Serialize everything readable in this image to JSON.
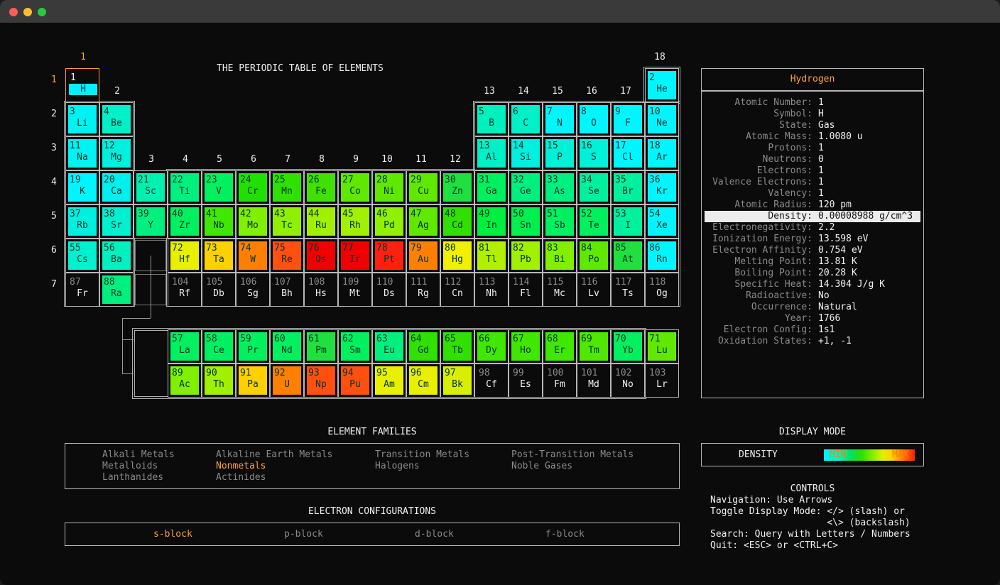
{
  "title": "THE PERIODIC TABLE OF ELEMENTS",
  "group_labels": [
    "1",
    "2",
    "3",
    "4",
    "5",
    "6",
    "7",
    "8",
    "9",
    "10",
    "11",
    "12",
    "13",
    "14",
    "15",
    "16",
    "17",
    "18"
  ],
  "period_labels": [
    "1",
    "2",
    "3",
    "4",
    "5",
    "6",
    "7"
  ],
  "colors": {
    "accent": "#ffa030",
    "selected_border": "#ff9a20",
    "scale": [
      "#00f5ff",
      "#00e060",
      "#90f000",
      "#ffd000",
      "#ff8000",
      "#ff2000"
    ]
  },
  "elements": [
    {
      "n": "1",
      "s": "H",
      "g": 1,
      "p": 1,
      "c": "#00f0ff",
      "selected": true
    },
    {
      "n": "2",
      "s": "He",
      "g": 18,
      "p": 1,
      "c": "#00f5ff"
    },
    {
      "n": "3",
      "s": "Li",
      "g": 1,
      "p": 2,
      "c": "#00f2f2"
    },
    {
      "n": "4",
      "s": "Be",
      "g": 2,
      "p": 2,
      "c": "#00f0c8"
    },
    {
      "n": "5",
      "s": "B",
      "g": 13,
      "p": 2,
      "c": "#00f0c0"
    },
    {
      "n": "6",
      "s": "C",
      "g": 14,
      "p": 2,
      "c": "#00f0c8"
    },
    {
      "n": "7",
      "s": "N",
      "g": 15,
      "p": 2,
      "c": "#00f5ff"
    },
    {
      "n": "8",
      "s": "O",
      "g": 16,
      "p": 2,
      "c": "#00f5ff"
    },
    {
      "n": "9",
      "s": "F",
      "g": 17,
      "p": 2,
      "c": "#00f5ff"
    },
    {
      "n": "10",
      "s": "Ne",
      "g": 18,
      "p": 2,
      "c": "#00f5ff"
    },
    {
      "n": "11",
      "s": "Na",
      "g": 1,
      "p": 3,
      "c": "#00f2f2"
    },
    {
      "n": "12",
      "s": "Mg",
      "g": 2,
      "p": 3,
      "c": "#00f0e0"
    },
    {
      "n": "13",
      "s": "Al",
      "g": 13,
      "p": 3,
      "c": "#00f0c8"
    },
    {
      "n": "14",
      "s": "Si",
      "g": 14,
      "p": 3,
      "c": "#00f0e0"
    },
    {
      "n": "15",
      "s": "P",
      "g": 15,
      "p": 3,
      "c": "#00f0d8"
    },
    {
      "n": "16",
      "s": "S",
      "g": 16,
      "p": 3,
      "c": "#00f0d8"
    },
    {
      "n": "17",
      "s": "Cl",
      "g": 17,
      "p": 3,
      "c": "#00f5ff"
    },
    {
      "n": "18",
      "s": "Ar",
      "g": 18,
      "p": 3,
      "c": "#00f5ff"
    },
    {
      "n": "19",
      "s": "K",
      "g": 1,
      "p": 4,
      "c": "#00f5ff"
    },
    {
      "n": "20",
      "s": "Ca",
      "g": 2,
      "p": 4,
      "c": "#00f0f0"
    },
    {
      "n": "21",
      "s": "Sc",
      "g": 3,
      "p": 4,
      "c": "#00f0b0"
    },
    {
      "n": "22",
      "s": "Ti",
      "g": 4,
      "p": 4,
      "c": "#00f080"
    },
    {
      "n": "23",
      "s": "V",
      "g": 5,
      "p": 4,
      "c": "#00f060"
    },
    {
      "n": "24",
      "s": "Cr",
      "g": 6,
      "p": 4,
      "c": "#20e000"
    },
    {
      "n": "25",
      "s": "Mn",
      "g": 7,
      "p": 4,
      "c": "#30e000"
    },
    {
      "n": "26",
      "s": "Fe",
      "g": 8,
      "p": 4,
      "c": "#40e000"
    },
    {
      "n": "27",
      "s": "Co",
      "g": 9,
      "p": 4,
      "c": "#60e800"
    },
    {
      "n": "28",
      "s": "Ni",
      "g": 10,
      "p": 4,
      "c": "#60e800"
    },
    {
      "n": "29",
      "s": "Cu",
      "g": 11,
      "p": 4,
      "c": "#60e800"
    },
    {
      "n": "30",
      "s": "Zn",
      "g": 12,
      "p": 4,
      "c": "#20e040"
    },
    {
      "n": "31",
      "s": "Ga",
      "g": 13,
      "p": 4,
      "c": "#00f060"
    },
    {
      "n": "32",
      "s": "Ge",
      "g": 14,
      "p": 4,
      "c": "#00f080"
    },
    {
      "n": "33",
      "s": "As",
      "g": 15,
      "p": 4,
      "c": "#00f080"
    },
    {
      "n": "34",
      "s": "Se",
      "g": 16,
      "p": 4,
      "c": "#00f0a0"
    },
    {
      "n": "35",
      "s": "Br",
      "g": 17,
      "p": 4,
      "c": "#00f0a0"
    },
    {
      "n": "36",
      "s": "Kr",
      "g": 18,
      "p": 4,
      "c": "#00f5ff"
    },
    {
      "n": "37",
      "s": "Rb",
      "g": 1,
      "p": 5,
      "c": "#00f0e0"
    },
    {
      "n": "38",
      "s": "Sr",
      "g": 2,
      "p": 5,
      "c": "#00f0d0"
    },
    {
      "n": "39",
      "s": "Y",
      "g": 3,
      "p": 5,
      "c": "#00f080"
    },
    {
      "n": "40",
      "s": "Zr",
      "g": 4,
      "p": 5,
      "c": "#00f060"
    },
    {
      "n": "41",
      "s": "Nb",
      "g": 5,
      "p": 5,
      "c": "#40e800"
    },
    {
      "n": "42",
      "s": "Mo",
      "g": 6,
      "p": 5,
      "c": "#80f000"
    },
    {
      "n": "43",
      "s": "Tc",
      "g": 7,
      "p": 5,
      "c": "#90f000"
    },
    {
      "n": "44",
      "s": "Ru",
      "g": 8,
      "p": 5,
      "c": "#a0f000"
    },
    {
      "n": "45",
      "s": "Rh",
      "g": 9,
      "p": 5,
      "c": "#a0f000"
    },
    {
      "n": "46",
      "s": "Pd",
      "g": 10,
      "p": 5,
      "c": "#90f000"
    },
    {
      "n": "47",
      "s": "Ag",
      "g": 11,
      "p": 5,
      "c": "#60e800"
    },
    {
      "n": "48",
      "s": "Cd",
      "g": 12,
      "p": 5,
      "c": "#30e000"
    },
    {
      "n": "49",
      "s": "In",
      "g": 13,
      "p": 5,
      "c": "#00f040"
    },
    {
      "n": "50",
      "s": "Sn",
      "g": 14,
      "p": 5,
      "c": "#00f050"
    },
    {
      "n": "51",
      "s": "Sb",
      "g": 15,
      "p": 5,
      "c": "#00f060"
    },
    {
      "n": "52",
      "s": "Te",
      "g": 16,
      "p": 5,
      "c": "#00f060"
    },
    {
      "n": "53",
      "s": "I",
      "g": 17,
      "p": 5,
      "c": "#00f0a0"
    },
    {
      "n": "54",
      "s": "Xe",
      "g": 18,
      "p": 5,
      "c": "#00f5ff"
    },
    {
      "n": "55",
      "s": "Cs",
      "g": 1,
      "p": 6,
      "c": "#00f0d0"
    },
    {
      "n": "56",
      "s": "Ba",
      "g": 2,
      "p": 6,
      "c": "#00f0c0"
    },
    {
      "n": "72",
      "s": "Hf",
      "g": 4,
      "p": 6,
      "c": "#e8f000"
    },
    {
      "n": "73",
      "s": "Ta",
      "g": 5,
      "p": 6,
      "c": "#ffd000"
    },
    {
      "n": "74",
      "s": "W",
      "g": 6,
      "p": 6,
      "c": "#ff8000"
    },
    {
      "n": "75",
      "s": "Re",
      "g": 7,
      "p": 6,
      "c": "#ff5010"
    },
    {
      "n": "76",
      "s": "Os",
      "g": 8,
      "p": 6,
      "c": "#f00000"
    },
    {
      "n": "77",
      "s": "Ir",
      "g": 9,
      "p": 6,
      "c": "#f00000"
    },
    {
      "n": "78",
      "s": "Pt",
      "g": 10,
      "p": 6,
      "c": "#ff2010"
    },
    {
      "n": "79",
      "s": "Au",
      "g": 11,
      "p": 6,
      "c": "#ff8000"
    },
    {
      "n": "80",
      "s": "Hg",
      "g": 12,
      "p": 6,
      "c": "#f0f000"
    },
    {
      "n": "81",
      "s": "Tl",
      "g": 13,
      "p": 6,
      "c": "#b0f000"
    },
    {
      "n": "82",
      "s": "Pb",
      "g": 14,
      "p": 6,
      "c": "#a0f000"
    },
    {
      "n": "83",
      "s": "Bi",
      "g": 15,
      "p": 6,
      "c": "#80f000"
    },
    {
      "n": "84",
      "s": "Po",
      "g": 16,
      "p": 6,
      "c": "#60e800"
    },
    {
      "n": "85",
      "s": "At",
      "g": 17,
      "p": 6,
      "c": "#20e040"
    },
    {
      "n": "86",
      "s": "Rn",
      "g": 18,
      "p": 6,
      "c": "#00f5ff"
    },
    {
      "n": "87",
      "s": "Fr",
      "g": 1,
      "p": 7,
      "c": null
    },
    {
      "n": "88",
      "s": "Ra",
      "g": 2,
      "p": 7,
      "c": "#00f080"
    },
    {
      "n": "104",
      "s": "Rf",
      "g": 4,
      "p": 7,
      "c": null
    },
    {
      "n": "105",
      "s": "Db",
      "g": 5,
      "p": 7,
      "c": null
    },
    {
      "n": "106",
      "s": "Sg",
      "g": 6,
      "p": 7,
      "c": null
    },
    {
      "n": "107",
      "s": "Bh",
      "g": 7,
      "p": 7,
      "c": null
    },
    {
      "n": "108",
      "s": "Hs",
      "g": 8,
      "p": 7,
      "c": null
    },
    {
      "n": "109",
      "s": "Mt",
      "g": 9,
      "p": 7,
      "c": null
    },
    {
      "n": "110",
      "s": "Ds",
      "g": 10,
      "p": 7,
      "c": null
    },
    {
      "n": "111",
      "s": "Rg",
      "g": 11,
      "p": 7,
      "c": null
    },
    {
      "n": "112",
      "s": "Cn",
      "g": 12,
      "p": 7,
      "c": null
    },
    {
      "n": "113",
      "s": "Nh",
      "g": 13,
      "p": 7,
      "c": null
    },
    {
      "n": "114",
      "s": "Fl",
      "g": 14,
      "p": 7,
      "c": null
    },
    {
      "n": "115",
      "s": "Mc",
      "g": 15,
      "p": 7,
      "c": null
    },
    {
      "n": "116",
      "s": "Lv",
      "g": 16,
      "p": 7,
      "c": null
    },
    {
      "n": "117",
      "s": "Ts",
      "g": 17,
      "p": 7,
      "c": null
    },
    {
      "n": "118",
      "s": "Og",
      "g": 18,
      "p": 7,
      "c": null
    },
    {
      "n": "57",
      "s": "La",
      "g": 4,
      "p": 9,
      "c": "#00f060"
    },
    {
      "n": "58",
      "s": "Ce",
      "g": 5,
      "p": 9,
      "c": "#00f060"
    },
    {
      "n": "59",
      "s": "Pr",
      "g": 6,
      "p": 9,
      "c": "#00f060"
    },
    {
      "n": "60",
      "s": "Nd",
      "g": 7,
      "p": 9,
      "c": "#00f060"
    },
    {
      "n": "61",
      "s": "Pm",
      "g": 8,
      "p": 9,
      "c": "#20e040"
    },
    {
      "n": "62",
      "s": "Sm",
      "g": 9,
      "p": 9,
      "c": "#00f060"
    },
    {
      "n": "63",
      "s": "Eu",
      "g": 10,
      "p": 9,
      "c": "#00f080"
    },
    {
      "n": "64",
      "s": "Gd",
      "g": 11,
      "p": 9,
      "c": "#30e000"
    },
    {
      "n": "65",
      "s": "Tb",
      "g": 12,
      "p": 9,
      "c": "#30e000"
    },
    {
      "n": "66",
      "s": "Dy",
      "g": 13,
      "p": 9,
      "c": "#40e800"
    },
    {
      "n": "67",
      "s": "Ho",
      "g": 14,
      "p": 9,
      "c": "#40e800"
    },
    {
      "n": "68",
      "s": "Er",
      "g": 15,
      "p": 9,
      "c": "#40e800"
    },
    {
      "n": "69",
      "s": "Tm",
      "g": 16,
      "p": 9,
      "c": "#50e800"
    },
    {
      "n": "70",
      "s": "Yb",
      "g": 17,
      "p": 9,
      "c": "#00f060"
    },
    {
      "n": "71",
      "s": "Lu",
      "g": 18,
      "p": 9,
      "c": "#60e800"
    },
    {
      "n": "89",
      "s": "Ac",
      "g": 4,
      "p": 10,
      "c": "#80f000"
    },
    {
      "n": "90",
      "s": "Th",
      "g": 5,
      "p": 10,
      "c": "#a0f000"
    },
    {
      "n": "91",
      "s": "Pa",
      "g": 6,
      "p": 10,
      "c": "#ffd000"
    },
    {
      "n": "92",
      "s": "U",
      "g": 7,
      "p": 10,
      "c": "#ff8000"
    },
    {
      "n": "93",
      "s": "Np",
      "g": 8,
      "p": 10,
      "c": "#ff5010"
    },
    {
      "n": "94",
      "s": "Pu",
      "g": 9,
      "p": 10,
      "c": "#ff5010"
    },
    {
      "n": "95",
      "s": "Am",
      "g": 10,
      "p": 10,
      "c": "#e8f000"
    },
    {
      "n": "96",
      "s": "Cm",
      "g": 11,
      "p": 10,
      "c": "#e8f000"
    },
    {
      "n": "97",
      "s": "Bk",
      "g": 12,
      "p": 10,
      "c": "#d8f000"
    },
    {
      "n": "98",
      "s": "Cf",
      "g": 13,
      "p": 10,
      "c": null
    },
    {
      "n": "99",
      "s": "Es",
      "g": 14,
      "p": 10,
      "c": null
    },
    {
      "n": "100",
      "s": "Fm",
      "g": 15,
      "p": 10,
      "c": null
    },
    {
      "n": "101",
      "s": "Md",
      "g": 16,
      "p": 10,
      "c": null
    },
    {
      "n": "102",
      "s": "No",
      "g": 17,
      "p": 10,
      "c": null
    },
    {
      "n": "103",
      "s": "Lr",
      "g": 18,
      "p": 10,
      "c": null
    }
  ],
  "details": {
    "name": "Hydrogen",
    "rows": [
      {
        "k": "Atomic Number:",
        "v": "1"
      },
      {
        "k": "Symbol:",
        "v": "H"
      },
      {
        "k": "State:",
        "v": "Gas"
      },
      {
        "k": "Atomic Mass:",
        "v": "1.0080 u"
      },
      {
        "k": "Protons:",
        "v": "1"
      },
      {
        "k": "Neutrons:",
        "v": "0"
      },
      {
        "k": "Electrons:",
        "v": "1"
      },
      {
        "k": "Valence Electrons:",
        "v": "1"
      },
      {
        "k": "Valency:",
        "v": "1"
      },
      {
        "k": "Atomic Radius:",
        "v": "120 pm"
      },
      {
        "k": "Density:",
        "v": "0.00008988 g/cm^3",
        "highlight": true
      },
      {
        "k": "Electronegativity:",
        "v": "2.2"
      },
      {
        "k": "Ionization Energy:",
        "v": "13.598 eV"
      },
      {
        "k": "Electron Affinity:",
        "v": "0.754 eV"
      },
      {
        "k": "Melting Point:",
        "v": "13.81 K"
      },
      {
        "k": "Boiling Point:",
        "v": "20.28 K"
      },
      {
        "k": "Specific Heat:",
        "v": "14.304 J/g K"
      },
      {
        "k": "Radioactive:",
        "v": "No"
      },
      {
        "k": "Occurrence:",
        "v": "Natural"
      },
      {
        "k": "Year:",
        "v": "1766"
      },
      {
        "k": "Electron Config:",
        "v": "1s1"
      },
      {
        "k": "Oxidation States:",
        "v": "+1, -1"
      }
    ]
  },
  "families": {
    "heading": "ELEMENT FAMILIES",
    "items": [
      {
        "label": "Alkali Metals",
        "active": false
      },
      {
        "label": "Alkaline Earth Metals",
        "active": false
      },
      {
        "label": "Transition Metals",
        "active": false
      },
      {
        "label": "Post-Transition Metals",
        "active": false
      },
      {
        "label": "Metalloids",
        "active": false
      },
      {
        "label": "Nonmetals",
        "active": true
      },
      {
        "label": "Halogens",
        "active": false
      },
      {
        "label": "Noble Gases",
        "active": false
      },
      {
        "label": "Lanthanides",
        "active": false
      },
      {
        "label": "Actinides",
        "active": false
      }
    ]
  },
  "configs": {
    "heading": "ELECTRON CONFIGURATIONS",
    "items": [
      {
        "label": "s-block",
        "active": true
      },
      {
        "label": "p-block",
        "active": false
      },
      {
        "label": "d-block",
        "active": false
      },
      {
        "label": "f-block",
        "active": false
      }
    ]
  },
  "display_mode": {
    "heading": "DISPLAY MODE",
    "mode": "DENSITY",
    "min": "MIN",
    "max": "MAX"
  },
  "controls": {
    "heading": "CONTROLS",
    "lines": [
      "Navigation: Use Arrows",
      "Toggle Display Mode: </> (slash) or",
      "                     <\\> (backslash)",
      "Search: Query with Letters / Numbers",
      "Quit: <ESC> or <CTRL+C>"
    ]
  }
}
